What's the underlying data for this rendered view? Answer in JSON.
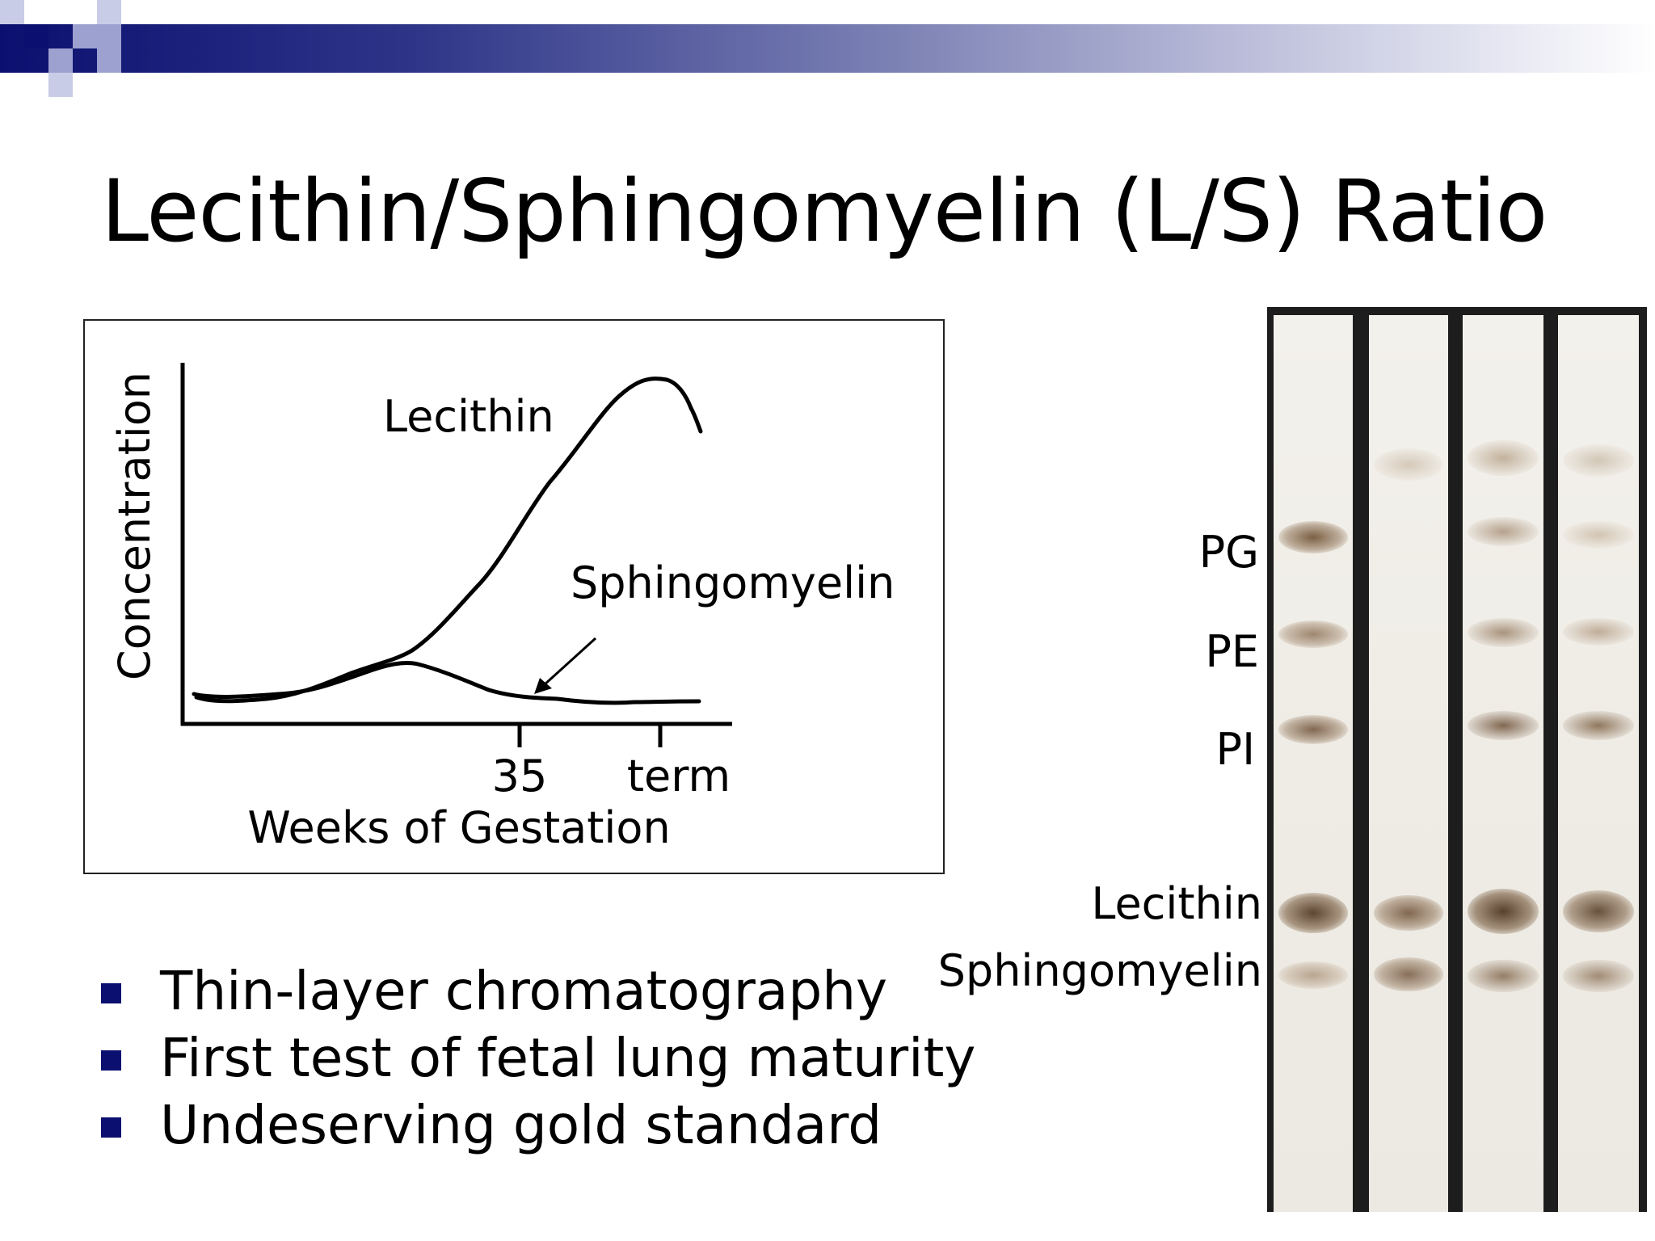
{
  "slide": {
    "title": "Lecithin/Sphingomyelin (L/S) Ratio",
    "accent_color": "#0b1070"
  },
  "chart": {
    "ylabel": "Concentration",
    "xlabel": "Weeks of Gestation",
    "tick_labels": [
      "35",
      "term"
    ],
    "series_labels": [
      "Lecithin",
      "Sphingomyelin"
    ]
  },
  "bullets": [
    "Thin-layer chromatography",
    "First test of fetal lung maturity",
    "Undeserving gold standard"
  ],
  "tlc": {
    "labels": [
      "PG",
      "PE",
      "PI",
      "Lecithin",
      "Sphingomyelin"
    ]
  }
}
